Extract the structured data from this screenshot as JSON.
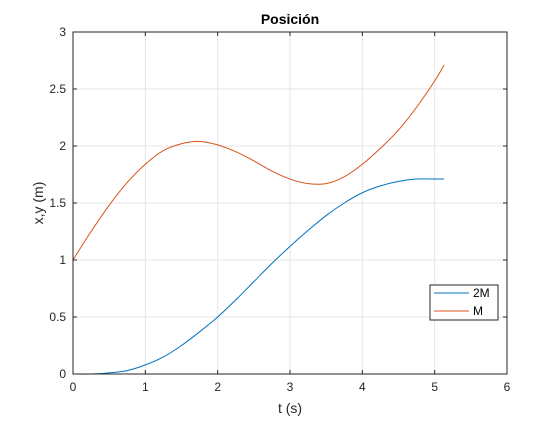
{
  "chart_data": {
    "type": "line",
    "title": "Posición",
    "xlabel": "t (s)",
    "ylabel": "x,y (m)",
    "xlim": [
      0,
      6
    ],
    "ylim": [
      0,
      3
    ],
    "xticks": [
      "0",
      "1",
      "2",
      "3",
      "4",
      "5",
      "6"
    ],
    "yticks": [
      "0",
      "0.5",
      "1",
      "1.5",
      "2",
      "2.5",
      "3"
    ],
    "grid": true,
    "legend_position": "lower-right",
    "series": [
      {
        "name": "2M",
        "color": "#0072BD",
        "x": [
          0,
          0.25,
          0.5,
          0.75,
          1.0,
          1.25,
          1.5,
          1.75,
          2.0,
          2.25,
          2.5,
          2.75,
          3.0,
          3.25,
          3.5,
          3.75,
          4.0,
          4.25,
          4.5,
          4.75,
          5.0,
          5.13
        ],
        "y": [
          0.0,
          0.0,
          0.01,
          0.03,
          0.08,
          0.15,
          0.25,
          0.37,
          0.5,
          0.65,
          0.81,
          0.97,
          1.12,
          1.26,
          1.39,
          1.5,
          1.59,
          1.65,
          1.69,
          1.71,
          1.71,
          1.71
        ]
      },
      {
        "name": "M",
        "color": "#D95319",
        "x": [
          0,
          0.25,
          0.5,
          0.75,
          1.0,
          1.25,
          1.5,
          1.75,
          2.0,
          2.25,
          2.5,
          2.75,
          3.0,
          3.25,
          3.5,
          3.75,
          4.0,
          4.25,
          4.5,
          4.75,
          5.0,
          5.13
        ],
        "y": [
          1.0,
          1.25,
          1.48,
          1.68,
          1.84,
          1.96,
          2.02,
          2.04,
          2.01,
          1.95,
          1.87,
          1.78,
          1.71,
          1.67,
          1.67,
          1.73,
          1.84,
          1.98,
          2.14,
          2.34,
          2.57,
          2.71
        ]
      }
    ]
  }
}
